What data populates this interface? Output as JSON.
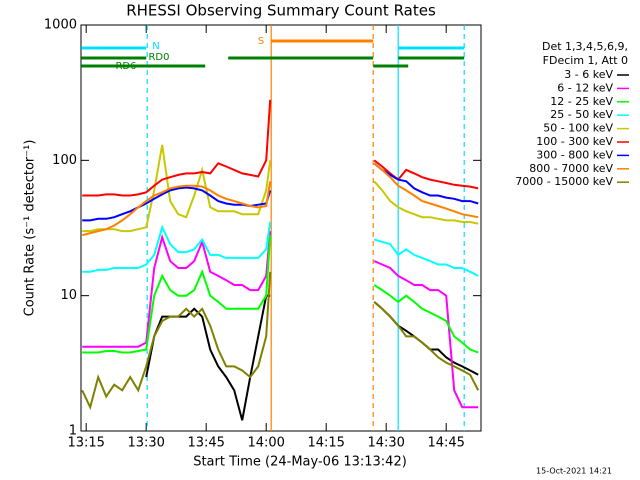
{
  "chart_data": {
    "type": "line",
    "title": "RHESSI Observing Summary Count Rates",
    "x_label": "Start Time (24-May-06 13:13:42)",
    "y_label": "Count Rate (s⁻¹ detector⁻¹)",
    "footer": "15-Oct-2021 14:21",
    "legend_header": [
      "Det 1,3,4,5,6,9,",
      "FDecim 1, Att 0"
    ],
    "log_y": true,
    "xlim": [
      13.7,
      113.7
    ],
    "ylim": [
      1,
      1000
    ],
    "xticks": [
      {
        "value": 15,
        "label": "13:15"
      },
      {
        "value": 30,
        "label": "13:30"
      },
      {
        "value": 45,
        "label": "13:45"
      },
      {
        "value": 60,
        "label": "14:00"
      },
      {
        "value": 75,
        "label": "14:15"
      },
      {
        "value": 90,
        "label": "14:30"
      },
      {
        "value": 105,
        "label": "14:45"
      }
    ],
    "yticks": [
      1,
      10,
      100,
      1000
    ],
    "x": [
      14,
      16,
      18,
      20,
      22,
      24,
      26,
      28,
      30,
      32,
      34,
      36,
      38,
      40,
      42,
      44,
      46,
      48,
      50,
      52,
      54,
      56,
      58,
      60,
      61,
      62,
      87,
      89,
      91,
      93,
      95,
      97,
      99,
      101,
      103,
      105,
      107,
      109,
      111,
      113
    ],
    "series": [
      {
        "name": "3 - 6 keV",
        "color": "#000000",
        "values": [
          null,
          null,
          null,
          null,
          null,
          null,
          null,
          null,
          2.5,
          5,
          7,
          7,
          7,
          7,
          8,
          7,
          4,
          3,
          2.5,
          2,
          1.2,
          2.5,
          5,
          10,
          10,
          null,
          9,
          8,
          7,
          6,
          5.5,
          5,
          4.5,
          4,
          4,
          3.5,
          3.2,
          3,
          2.8,
          2.6
        ]
      },
      {
        "name": "6 - 12 keV",
        "color": "#ff00ff",
        "values": [
          4.2,
          4.2,
          4.2,
          4.2,
          4.2,
          4.2,
          4.2,
          4.2,
          4.5,
          16,
          27,
          18,
          16,
          16,
          18,
          25,
          15,
          14,
          13,
          12,
          12,
          11,
          11,
          14,
          30,
          null,
          18,
          17,
          16,
          14,
          13,
          12,
          12,
          11,
          11,
          10,
          2,
          1.5,
          1.5,
          1.5
        ]
      },
      {
        "name": "12 - 25 keV",
        "color": "#00ff00",
        "values": [
          3.8,
          3.8,
          3.8,
          3.9,
          3.9,
          3.8,
          3.8,
          3.9,
          4,
          10,
          14,
          11,
          10,
          10,
          11,
          15,
          10,
          9,
          8,
          8,
          8,
          8,
          8,
          10,
          28,
          null,
          12,
          11,
          10,
          9,
          10,
          9,
          8,
          7.5,
          7,
          6.5,
          5,
          4.5,
          4,
          3.8
        ]
      },
      {
        "name": "25 - 50 keV",
        "color": "#00ffff",
        "values": [
          15,
          15,
          15.5,
          15.5,
          16,
          16,
          16,
          16,
          17,
          20,
          32,
          24,
          21,
          21,
          22,
          26,
          20,
          20,
          19,
          19,
          19,
          19,
          19,
          22,
          35,
          null,
          26,
          25,
          24,
          20,
          22,
          20,
          19,
          18,
          17,
          17,
          16,
          16,
          15,
          14
        ]
      },
      {
        "name": "50 - 100 keV",
        "color": "#c8c800",
        "values": [
          30,
          30,
          31,
          31,
          31,
          30,
          30,
          31,
          32,
          60,
          130,
          50,
          40,
          38,
          55,
          85,
          45,
          42,
          42,
          42,
          40,
          40,
          40,
          60,
          100,
          null,
          70,
          60,
          50,
          45,
          42,
          40,
          38,
          38,
          37,
          36,
          36,
          35,
          35,
          34
        ]
      },
      {
        "name": "100 - 300 keV",
        "color": "#ff0000",
        "values": [
          55,
          55,
          55,
          56,
          56,
          55,
          55,
          56,
          58,
          65,
          72,
          75,
          78,
          80,
          80,
          82,
          80,
          95,
          90,
          85,
          80,
          78,
          76,
          100,
          280,
          null,
          100,
          90,
          80,
          72,
          85,
          80,
          75,
          72,
          70,
          68,
          66,
          65,
          64,
          62
        ]
      },
      {
        "name": "300 - 800 keV",
        "color": "#0000ff",
        "values": [
          36,
          36,
          37,
          37,
          38,
          40,
          42,
          45,
          48,
          52,
          56,
          60,
          62,
          63,
          62,
          60,
          55,
          50,
          48,
          47,
          47,
          46,
          47,
          48,
          60,
          null,
          95,
          85,
          78,
          72,
          70,
          62,
          58,
          55,
          55,
          53,
          52,
          50,
          50,
          48
        ]
      },
      {
        "name": "800 - 7000 keV",
        "color": "#ff8000",
        "values": [
          28,
          29,
          30,
          31,
          33,
          36,
          40,
          45,
          50,
          55,
          58,
          62,
          64,
          65,
          65,
          64,
          60,
          55,
          52,
          50,
          48,
          46,
          45,
          46,
          70,
          null,
          95,
          85,
          75,
          65,
          60,
          55,
          50,
          48,
          46,
          44,
          42,
          40,
          39,
          38
        ]
      },
      {
        "name": "7000 - 15000 keV",
        "color": "#808000",
        "values": [
          2,
          1.5,
          2.5,
          1.8,
          2.2,
          2,
          2.5,
          2,
          3,
          5,
          6.5,
          7,
          7,
          8,
          7,
          8,
          6,
          4,
          3,
          3,
          2.8,
          2.5,
          3,
          5,
          15,
          null,
          9,
          8,
          7,
          6,
          5,
          5,
          4.5,
          4,
          3.5,
          3.2,
          3,
          2.8,
          2.6,
          2
        ]
      }
    ],
    "vlines": [
      {
        "x": 30.25,
        "color": "#00e0ff",
        "dashed": true
      },
      {
        "x": 61.25,
        "color": "#ff8000",
        "dashed": false
      },
      {
        "x": 86.75,
        "color": "#ff8000",
        "dashed": true
      },
      {
        "x": 93,
        "color": "#00e0ff",
        "dashed": false
      },
      {
        "x": 109.5,
        "color": "#00e0ff",
        "dashed": true
      }
    ],
    "flags": [
      {
        "label": "S",
        "color": "#ff8000",
        "segments": [
          [
            61.25,
            86.75
          ]
        ]
      },
      {
        "label": "N",
        "color": "#00e0ff",
        "segments": [
          [
            13.75,
            30
          ],
          [
            93,
            109.5
          ]
        ]
      },
      {
        "label": "RD0",
        "color": "#008000",
        "segments": [
          [
            13.75,
            30
          ],
          [
            50.5,
            86.75
          ],
          [
            93,
            109.5
          ]
        ]
      },
      {
        "label": "RD6",
        "color": "#008000",
        "segments": [
          [
            13.75,
            44.75
          ],
          [
            86.75,
            95.5
          ]
        ]
      }
    ]
  }
}
